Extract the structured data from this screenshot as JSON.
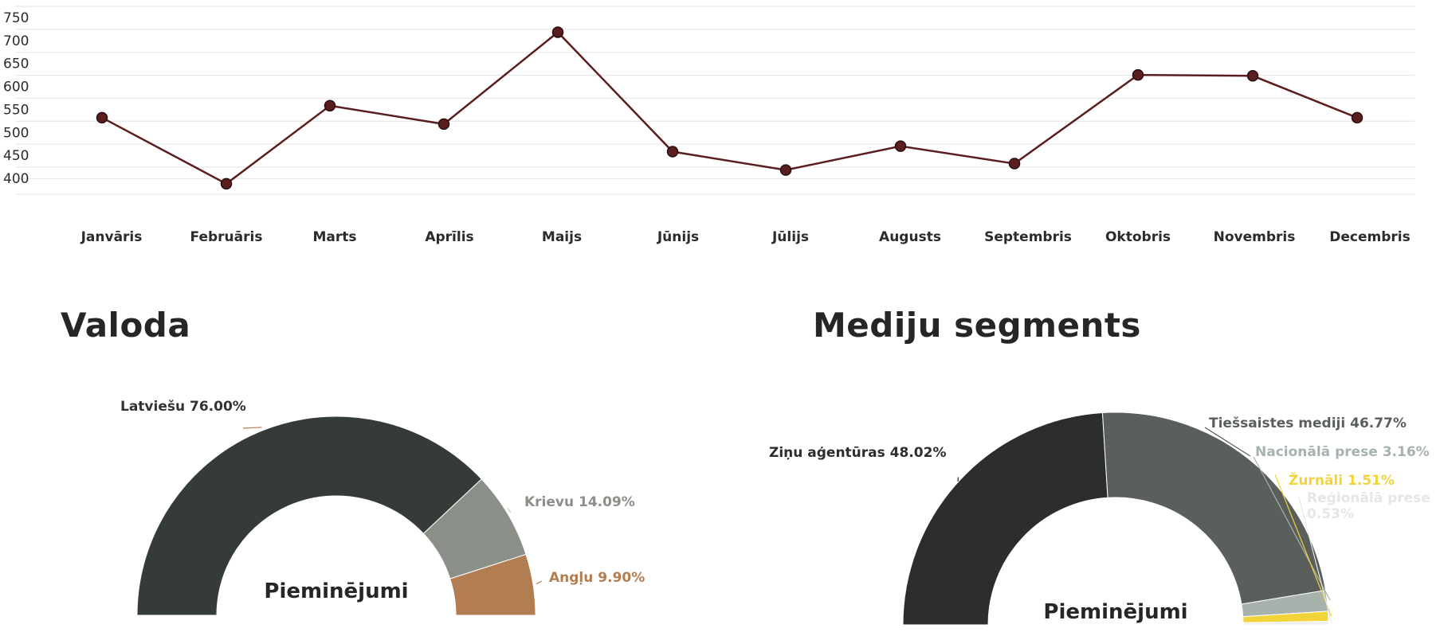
{
  "sections": {
    "language_title": "Valoda",
    "media_title": "Mediju segments"
  },
  "chart_data": [
    {
      "type": "line",
      "title": "",
      "xlabel": "",
      "ylabel": "",
      "categories": [
        "Janvāris",
        "Februāris",
        "Marts",
        "Aprīlis",
        "Maijs",
        "Jūnijs",
        "Jūlijs",
        "Augusts",
        "Septembris",
        "Oktobris",
        "Novembris",
        "Decembris"
      ],
      "series": [
        {
          "values": [
            532,
            388,
            558,
            518,
            718,
            458,
            418,
            470,
            432,
            625,
            623,
            532
          ],
          "color": "#5a1e1e"
        }
      ],
      "yticks": [
        400,
        450,
        500,
        550,
        600,
        650,
        700,
        750
      ],
      "ylim": [
        370,
        770
      ],
      "grid": true,
      "legend": "none"
    },
    {
      "type": "pie",
      "variant": "half-donut",
      "title": "Valoda",
      "center_label": "Pieminējumi",
      "slices": [
        {
          "label": "Latviešu 76.00%",
          "value": 76.0,
          "color": "#343b39"
        },
        {
          "label": "Krievu 14.09%",
          "value": 14.09,
          "color": "#8a8f88"
        },
        {
          "label": "Angļu 9.90%",
          "value": 9.9,
          "color": "#b27d50"
        }
      ]
    },
    {
      "type": "pie",
      "variant": "half-donut",
      "title": "Mediju segments",
      "center_label": "Pieminējumi",
      "slices": [
        {
          "label": "Ziņu aģentūras 48.02%",
          "value": 48.02,
          "color": "#2b2e2c"
        },
        {
          "label": "Tiešsaistes mediji 46.77%",
          "value": 46.77,
          "color": "#5a5f5c"
        },
        {
          "label": "Nacionālā prese 3.16%",
          "value": 3.16,
          "color": "#a7b2ac"
        },
        {
          "label": "Žurnāli 1.51%",
          "value": 1.51,
          "color": "#f2d33a"
        },
        {
          "label": "Reģionālā prese 0.53%",
          "value": 0.53,
          "color": "#eeeeee"
        }
      ]
    }
  ]
}
